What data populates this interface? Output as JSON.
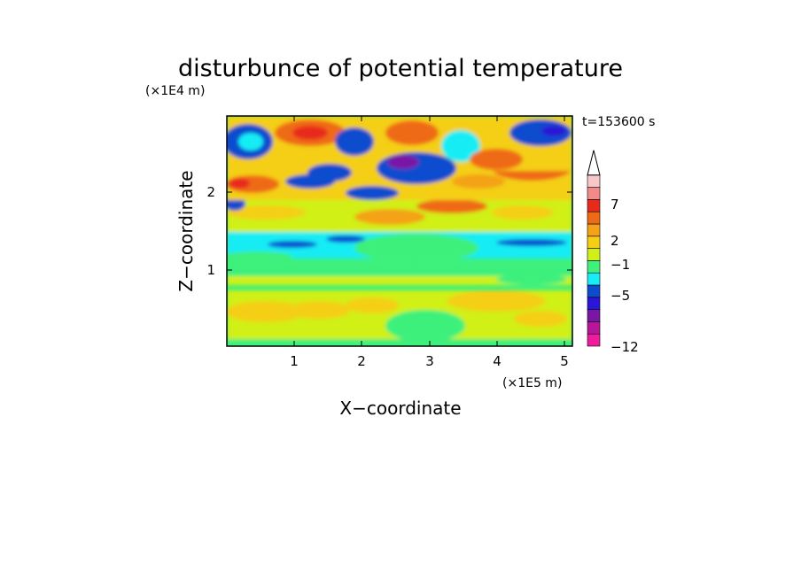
{
  "chart_data": {
    "type": "heatmap",
    "title": "disturbunce of potential temperature",
    "xlabel": "X−coordinate",
    "ylabel": "Z−coordinate",
    "x_scale_label": "(×1E5 m)",
    "y_scale_label": "(×1E4 m)",
    "time_label": "t=153600 s",
    "xlim": [
      0,
      5.15
    ],
    "ylim": [
      0,
      2.9
    ],
    "x_ticks": [
      "1",
      "2",
      "3",
      "4",
      "5"
    ],
    "y_ticks": [
      "1",
      "2"
    ],
    "colorbar": {
      "tick_labels": [
        "−12",
        "−5",
        "−1",
        "2",
        "7"
      ],
      "colors": [
        "#ee1c9c",
        "#b8169a",
        "#7a16a6",
        "#2a16d6",
        "#0e4ccf",
        "#18ecf4",
        "#3ef07c",
        "#d0f018",
        "#f4cf14",
        "#f4a218",
        "#ef6a16",
        "#e82a1a",
        "#f28a8a",
        "#f8c8c8"
      ],
      "extend": "max"
    },
    "bands": [
      {
        "z": 0.05,
        "level": "green"
      },
      {
        "z": 0.45,
        "level": "yellow-orange"
      },
      {
        "z": 0.8,
        "level": "green"
      },
      {
        "z": 1.05,
        "level": "green"
      },
      {
        "z": 1.35,
        "level": "cyan"
      },
      {
        "z": 1.75,
        "level": "yellow"
      },
      {
        "z": 2.1,
        "level": "orange-red"
      },
      {
        "z": 2.6,
        "level": "blue"
      }
    ]
  }
}
